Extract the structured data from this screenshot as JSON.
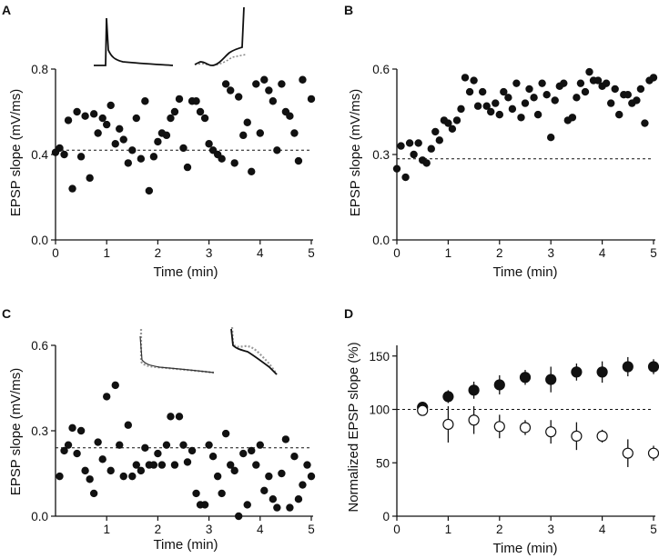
{
  "figure": {
    "charts": [
      {
        "label": "A",
        "xlabel": "Time (min)",
        "ylabel": "EPSP slope (mV/ms)"
      },
      {
        "label": "B",
        "xlabel": "Time (min)",
        "ylabel": "EPSP slope (mV/ms)"
      },
      {
        "label": "C",
        "xlabel": "Time (min)",
        "ylabel": "EPSP slope (mV/ms)"
      },
      {
        "label": "D",
        "xlabel": "Time (min)",
        "ylabel": "Normalized EPSP slope (%)"
      }
    ]
  },
  "chart_data": [
    {
      "panel": "A",
      "type": "scatter",
      "title": "",
      "xlabel": "Time (min)",
      "ylabel": "EPSP slope (mV/ms)",
      "xlim": [
        0,
        5
      ],
      "ylim": [
        0,
        0.8
      ],
      "xticks": [
        0,
        1,
        2,
        3,
        4,
        5
      ],
      "yticks": [
        0.0,
        0.4,
        0.8
      ],
      "ytick_labels": [
        "0.0",
        "0.4",
        "0.8"
      ],
      "baseline": 0.42,
      "has_inset_traces": true,
      "series": [
        {
          "name": "EPSP slope",
          "x": [
            0.0,
            0.08,
            0.17,
            0.25,
            0.33,
            0.42,
            0.5,
            0.58,
            0.67,
            0.75,
            0.83,
            0.92,
            1.0,
            1.08,
            1.17,
            1.25,
            1.33,
            1.42,
            1.5,
            1.58,
            1.67,
            1.75,
            1.83,
            1.92,
            2.0,
            2.08,
            2.17,
            2.25,
            2.33,
            2.42,
            2.5,
            2.58,
            2.67,
            2.75,
            2.83,
            2.92,
            3.0,
            3.08,
            3.17,
            3.25,
            3.33,
            3.42,
            3.5,
            3.58,
            3.67,
            3.75,
            3.83,
            3.92,
            4.0,
            4.08,
            4.17,
            4.25,
            4.33,
            4.42,
            4.5,
            4.58,
            4.67,
            4.75,
            4.83,
            5.0
          ],
          "y": [
            0.41,
            0.43,
            0.4,
            0.56,
            0.24,
            0.6,
            0.39,
            0.58,
            0.29,
            0.59,
            0.5,
            0.57,
            0.54,
            0.63,
            0.45,
            0.52,
            0.47,
            0.36,
            0.42,
            0.57,
            0.38,
            0.65,
            0.23,
            0.39,
            0.46,
            0.5,
            0.49,
            0.57,
            0.6,
            0.66,
            0.43,
            0.34,
            0.65,
            0.65,
            0.6,
            0.57,
            0.45,
            0.42,
            0.4,
            0.38,
            0.73,
            0.7,
            0.36,
            0.67,
            0.49,
            0.55,
            0.32,
            0.73,
            0.5,
            0.75,
            0.7,
            0.65,
            0.42,
            0.73,
            0.6,
            0.58,
            0.5,
            0.37,
            0.75,
            0.66
          ]
        }
      ]
    },
    {
      "panel": "B",
      "type": "scatter",
      "title": "",
      "xlabel": "Time (min)",
      "ylabel": "EPSP slope (mV/ms)",
      "xlim": [
        0,
        5
      ],
      "ylim": [
        0,
        0.6
      ],
      "xticks": [
        0,
        1,
        2,
        3,
        4,
        5
      ],
      "yticks": [
        0.0,
        0.3,
        0.6
      ],
      "ytick_labels": [
        "0.0",
        "0.3",
        "0.6"
      ],
      "baseline": 0.285,
      "has_inset_traces": false,
      "series": [
        {
          "name": "EPSP slope",
          "x": [
            0.0,
            0.08,
            0.17,
            0.25,
            0.33,
            0.42,
            0.5,
            0.58,
            0.67,
            0.75,
            0.83,
            0.92,
            1.0,
            1.08,
            1.17,
            1.25,
            1.33,
            1.42,
            1.5,
            1.58,
            1.67,
            1.75,
            1.83,
            1.92,
            2.0,
            2.08,
            2.17,
            2.25,
            2.33,
            2.42,
            2.5,
            2.58,
            2.67,
            2.75,
            2.83,
            2.92,
            3.0,
            3.08,
            3.17,
            3.25,
            3.33,
            3.42,
            3.5,
            3.58,
            3.67,
            3.75,
            3.83,
            3.92,
            4.0,
            4.08,
            4.17,
            4.25,
            4.33,
            4.42,
            4.5,
            4.58,
            4.67,
            4.75,
            4.83,
            4.92,
            5.0
          ],
          "y": [
            0.25,
            0.33,
            0.22,
            0.34,
            0.3,
            0.34,
            0.28,
            0.27,
            0.32,
            0.38,
            0.35,
            0.42,
            0.41,
            0.39,
            0.42,
            0.46,
            0.57,
            0.52,
            0.56,
            0.47,
            0.52,
            0.47,
            0.45,
            0.48,
            0.44,
            0.52,
            0.5,
            0.46,
            0.55,
            0.43,
            0.48,
            0.53,
            0.5,
            0.44,
            0.55,
            0.51,
            0.36,
            0.49,
            0.54,
            0.55,
            0.42,
            0.43,
            0.5,
            0.55,
            0.52,
            0.59,
            0.56,
            0.56,
            0.54,
            0.55,
            0.48,
            0.53,
            0.44,
            0.51,
            0.51,
            0.48,
            0.49,
            0.53,
            0.41,
            0.56,
            0.57
          ]
        }
      ]
    },
    {
      "panel": "C",
      "type": "scatter",
      "title": "",
      "xlabel": "Time (min)",
      "ylabel": "EPSP slope (mV/ms)",
      "xlim": [
        0,
        5
      ],
      "ylim": [
        0,
        0.6
      ],
      "xticks": [
        1,
        2,
        3,
        4,
        5
      ],
      "yticks": [
        0.0,
        0.3,
        0.6
      ],
      "ytick_labels": [
        "0.0",
        "0.3",
        "0.6"
      ],
      "baseline": 0.24,
      "has_inset_traces": true,
      "series": [
        {
          "name": "EPSP slope",
          "x": [
            0.08,
            0.17,
            0.25,
            0.33,
            0.42,
            0.5,
            0.58,
            0.67,
            0.75,
            0.83,
            0.92,
            1.0,
            1.08,
            1.17,
            1.25,
            1.33,
            1.42,
            1.5,
            1.58,
            1.67,
            1.75,
            1.83,
            1.92,
            2.0,
            2.08,
            2.17,
            2.25,
            2.33,
            2.42,
            2.5,
            2.58,
            2.67,
            2.75,
            2.83,
            2.92,
            3.0,
            3.08,
            3.17,
            3.25,
            3.33,
            3.42,
            3.5,
            3.58,
            3.67,
            3.75,
            3.83,
            3.92,
            4.0,
            4.08,
            4.17,
            4.25,
            4.33,
            4.42,
            4.5,
            4.58,
            4.67,
            4.75,
            4.83,
            4.92,
            5.0
          ],
          "y": [
            0.14,
            0.23,
            0.25,
            0.31,
            0.22,
            0.3,
            0.16,
            0.13,
            0.08,
            0.26,
            0.2,
            0.42,
            0.16,
            0.46,
            0.25,
            0.14,
            0.32,
            0.14,
            0.18,
            0.16,
            0.24,
            0.18,
            0.18,
            0.22,
            0.18,
            0.25,
            0.35,
            0.18,
            0.35,
            0.25,
            0.19,
            0.23,
            0.08,
            0.04,
            0.04,
            0.25,
            0.21,
            0.14,
            0.08,
            0.29,
            0.18,
            0.16,
            0.0,
            0.22,
            0.04,
            0.23,
            0.18,
            0.25,
            0.09,
            0.14,
            0.06,
            0.03,
            0.15,
            0.27,
            0.03,
            0.21,
            0.06,
            0.11,
            0.18,
            0.14
          ]
        }
      ]
    },
    {
      "panel": "D",
      "type": "scatter",
      "title": "",
      "xlabel": "Time (min)",
      "ylabel": "Normalized EPSP slope (%)",
      "xlim": [
        0,
        5
      ],
      "ylim": [
        0,
        160
      ],
      "xticks": [
        0,
        1,
        2,
        3,
        4,
        5
      ],
      "yticks": [
        0,
        50,
        100,
        150
      ],
      "ytick_labels": [
        "0",
        "50",
        "100",
        "150"
      ],
      "baseline": 100,
      "has_inset_traces": false,
      "series": [
        {
          "name": "filled",
          "filled": true,
          "x": [
            0.5,
            1.0,
            1.5,
            2.0,
            2.5,
            3.0,
            3.5,
            4.0,
            4.5,
            5.0
          ],
          "y": [
            102,
            112,
            118,
            123,
            130,
            128,
            135,
            135,
            140,
            140
          ],
          "err": [
            3,
            6,
            8,
            9,
            7,
            12,
            8,
            10,
            9,
            7
          ]
        },
        {
          "name": "open",
          "filled": false,
          "x": [
            0.5,
            1.0,
            1.5,
            2.0,
            2.5,
            3.0,
            3.5,
            4.0,
            4.5,
            5.0
          ],
          "y": [
            99,
            86,
            90,
            84,
            83,
            79,
            75,
            75,
            59,
            59
          ],
          "err": [
            3,
            17,
            13,
            11,
            7,
            11,
            13,
            6,
            13,
            7
          ]
        }
      ]
    }
  ]
}
